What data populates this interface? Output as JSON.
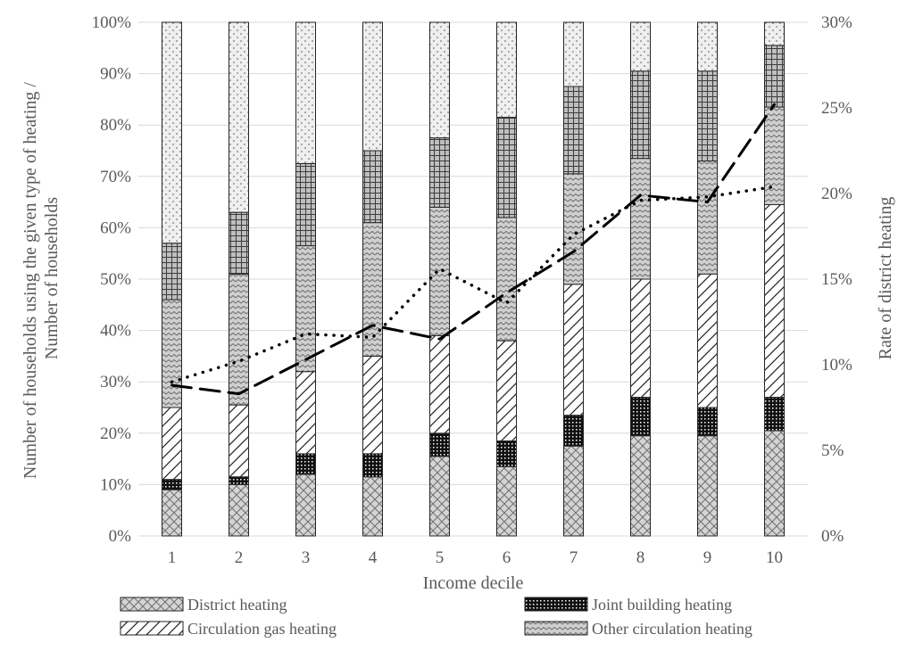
{
  "chart_data": {
    "type": "bar",
    "stacked": true,
    "categories": [
      "1",
      "2",
      "3",
      "4",
      "5",
      "6",
      "7",
      "8",
      "9",
      "10"
    ],
    "xlabel": "Income decile",
    "ylabel": "Number of households using the given type of heating / Number of households",
    "y2label": "Rate of district heating",
    "ylim": [
      0,
      100
    ],
    "y2lim": [
      0,
      30
    ],
    "yticks": [
      "0%",
      "10%",
      "20%",
      "30%",
      "40%",
      "50%",
      "60%",
      "70%",
      "80%",
      "90%",
      "100%"
    ],
    "y2ticks": [
      "0%",
      "5%",
      "10%",
      "15%",
      "20%",
      "25%",
      "30%"
    ],
    "grid": true,
    "legend_position": "bottom",
    "series": [
      {
        "name": "District heating",
        "pattern": "crosshatch-grey",
        "values": [
          9,
          10,
          12,
          11.5,
          15.5,
          13.5,
          17.5,
          19.5,
          19.5,
          20.5
        ]
      },
      {
        "name": "Joint building heating",
        "pattern": "black-dots",
        "values": [
          2,
          1.5,
          4,
          4.5,
          4.5,
          5,
          6,
          7.5,
          5.5,
          6.5
        ]
      },
      {
        "pattern": "diagonal-white",
        "values": [
          14,
          14,
          16,
          19,
          19,
          19.5,
          25.5,
          23,
          26,
          37.5
        ]
      },
      {
        "name": "Circulation gas heating",
        "pattern": "zigzag-grey",
        "values": [
          21,
          25.5,
          24.5,
          26,
          25,
          24,
          21.5,
          23.5,
          22,
          19
        ]
      },
      {
        "name": "Other circulation heating",
        "pattern": "grid-grey",
        "values": [
          11,
          12,
          16,
          14,
          13.5,
          19.5,
          17,
          17,
          17.5,
          12
        ]
      },
      {
        "pattern": "dots-light",
        "values": [
          43,
          37,
          27.5,
          25,
          22.5,
          18.5,
          12.5,
          9.5,
          9.5,
          4.5
        ]
      }
    ],
    "lines": [
      {
        "style": "dashed",
        "axis": "secondary",
        "values": [
          8.8,
          8.3,
          10.3,
          12.3,
          11.5,
          14.2,
          16.6,
          19.9,
          19.5,
          25.2
        ]
      },
      {
        "style": "dotted",
        "axis": "secondary",
        "values": [
          9,
          10.2,
          11.8,
          11.6,
          15.6,
          13.6,
          17.6,
          19.6,
          19.8,
          20.4
        ]
      }
    ]
  }
}
